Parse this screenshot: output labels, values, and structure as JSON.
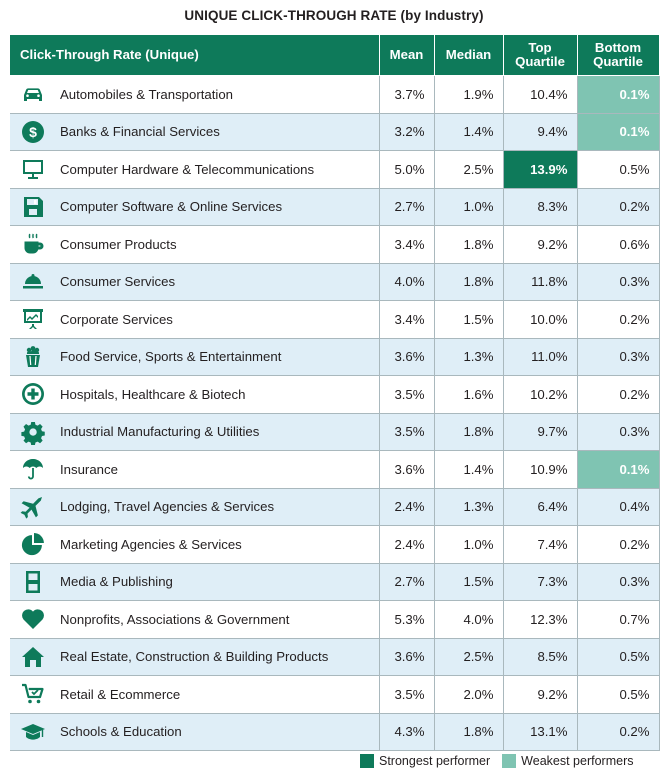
{
  "chart_data": {
    "type": "table",
    "title": "UNIQUE CLICK-THROUGH RATE (by Industry)",
    "columns": [
      "Click-Through Rate (Unique)",
      "Mean",
      "Median",
      "Top\nQuartile",
      "Bottom\nQuartile"
    ],
    "rows": [
      {
        "industry": "Automobiles & Transportation",
        "icon": "car-icon",
        "mean": "3.7%",
        "median": "1.9%",
        "top": "10.4%",
        "bottom": "0.1%",
        "highlight": "bottom-weak"
      },
      {
        "industry": "Banks & Financial Services",
        "icon": "dollar-icon",
        "mean": "3.2%",
        "median": "1.4%",
        "top": "9.4%",
        "bottom": "0.1%",
        "highlight": "bottom-weak"
      },
      {
        "industry": "Computer Hardware & Telecommunications",
        "icon": "monitor-icon",
        "mean": "5.0%",
        "median": "2.5%",
        "top": "13.9%",
        "bottom": "0.5%",
        "highlight": "top-strong"
      },
      {
        "industry": "Computer Software & Online Services",
        "icon": "floppy-disk-icon",
        "mean": "2.7%",
        "median": "1.0%",
        "top": "8.3%",
        "bottom": "0.2%",
        "highlight": ""
      },
      {
        "industry": "Consumer Products",
        "icon": "coffee-cup-icon",
        "mean": "3.4%",
        "median": "1.8%",
        "top": "9.2%",
        "bottom": "0.6%",
        "highlight": ""
      },
      {
        "industry": "Consumer Services",
        "icon": "service-bell-icon",
        "mean": "4.0%",
        "median": "1.8%",
        "top": "11.8%",
        "bottom": "0.3%",
        "highlight": ""
      },
      {
        "industry": "Corporate Services",
        "icon": "presentation-board-icon",
        "mean": "3.4%",
        "median": "1.5%",
        "top": "10.0%",
        "bottom": "0.2%",
        "highlight": ""
      },
      {
        "industry": "Food Service, Sports & Entertainment",
        "icon": "popcorn-icon",
        "mean": "3.6%",
        "median": "1.3%",
        "top": "11.0%",
        "bottom": "0.3%",
        "highlight": ""
      },
      {
        "industry": "Hospitals, Healthcare & Biotech",
        "icon": "medical-plus-icon",
        "mean": "3.5%",
        "median": "1.6%",
        "top": "10.2%",
        "bottom": "0.2%",
        "highlight": ""
      },
      {
        "industry": "Industrial Manufacturing & Utilities",
        "icon": "gear-icon",
        "mean": "3.5%",
        "median": "1.8%",
        "top": "9.7%",
        "bottom": "0.3%",
        "highlight": ""
      },
      {
        "industry": "Insurance",
        "icon": "umbrella-icon",
        "mean": "3.6%",
        "median": "1.4%",
        "top": "10.9%",
        "bottom": "0.1%",
        "highlight": "bottom-weak"
      },
      {
        "industry": "Lodging, Travel Agencies & Services",
        "icon": "airplane-icon",
        "mean": "2.4%",
        "median": "1.3%",
        "top": "6.4%",
        "bottom": "0.4%",
        "highlight": ""
      },
      {
        "industry": "Marketing Agencies & Services",
        "icon": "pie-chart-icon",
        "mean": "2.4%",
        "median": "1.0%",
        "top": "7.4%",
        "bottom": "0.2%",
        "highlight": ""
      },
      {
        "industry": "Media & Publishing",
        "icon": "film-strip-icon",
        "mean": "2.7%",
        "median": "1.5%",
        "top": "7.3%",
        "bottom": "0.3%",
        "highlight": ""
      },
      {
        "industry": "Nonprofits, Associations & Government",
        "icon": "heart-icon",
        "mean": "5.3%",
        "median": "4.0%",
        "top": "12.3%",
        "bottom": "0.7%",
        "highlight": ""
      },
      {
        "industry": "Real Estate, Construction & Building Products",
        "icon": "house-icon",
        "mean": "3.6%",
        "median": "2.5%",
        "top": "8.5%",
        "bottom": "0.5%",
        "highlight": ""
      },
      {
        "industry": "Retail & Ecommerce",
        "icon": "shopping-cart-icon",
        "mean": "3.5%",
        "median": "2.0%",
        "top": "9.2%",
        "bottom": "0.5%",
        "highlight": ""
      },
      {
        "industry": "Schools & Education",
        "icon": "graduation-cap-icon",
        "mean": "4.3%",
        "median": "1.8%",
        "top": "13.1%",
        "bottom": "0.2%",
        "highlight": ""
      }
    ],
    "legend": [
      {
        "label": "Strongest performer",
        "color": "#0e7a5a"
      },
      {
        "label": "Weakest performers",
        "color": "#7fc4b2"
      }
    ]
  },
  "colors": {
    "accent": "#0e7a5a",
    "weak": "#7fc4b2",
    "row_alt": "#dfeef7"
  }
}
